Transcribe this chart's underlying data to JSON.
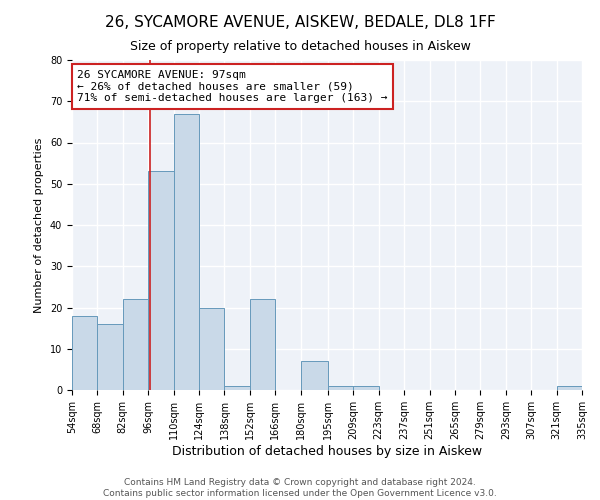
{
  "title": "26, SYCAMORE AVENUE, AISKEW, BEDALE, DL8 1FF",
  "subtitle": "Size of property relative to detached houses in Aiskew",
  "xlabel": "Distribution of detached houses by size in Aiskew",
  "ylabel": "Number of detached properties",
  "bar_color": "#c9d9e8",
  "bar_edge_color": "#6699bb",
  "background_color": "#eef2f8",
  "grid_color": "#ffffff",
  "annotation_box_color": "#cc2222",
  "vline_color": "#cc2222",
  "vline_x": 97,
  "bin_edges": [
    54,
    68,
    82,
    96,
    110,
    124,
    138,
    152,
    166,
    180,
    195,
    209,
    223,
    237,
    251,
    265,
    279,
    293,
    307,
    321,
    335
  ],
  "bin_labels": [
    "54sqm",
    "68sqm",
    "82sqm",
    "96sqm",
    "110sqm",
    "124sqm",
    "138sqm",
    "152sqm",
    "166sqm",
    "180sqm",
    "195sqm",
    "209sqm",
    "223sqm",
    "237sqm",
    "251sqm",
    "265sqm",
    "279sqm",
    "293sqm",
    "307sqm",
    "321sqm",
    "335sqm"
  ],
  "bar_heights": [
    18,
    16,
    22,
    53,
    67,
    20,
    1,
    22,
    0,
    7,
    1,
    1,
    0,
    0,
    0,
    0,
    0,
    0,
    0,
    1
  ],
  "ylim": [
    0,
    80
  ],
  "yticks": [
    0,
    10,
    20,
    30,
    40,
    50,
    60,
    70,
    80
  ],
  "annotation_line1": "26 SYCAMORE AVENUE: 97sqm",
  "annotation_line2": "← 26% of detached houses are smaller (59)",
  "annotation_line3": "71% of semi-detached houses are larger (163) →",
  "footer_line1": "Contains HM Land Registry data © Crown copyright and database right 2024.",
  "footer_line2": "Contains public sector information licensed under the Open Government Licence v3.0.",
  "title_fontsize": 11,
  "subtitle_fontsize": 9,
  "xlabel_fontsize": 9,
  "ylabel_fontsize": 8,
  "tick_fontsize": 7,
  "annotation_fontsize": 8,
  "footer_fontsize": 6.5
}
